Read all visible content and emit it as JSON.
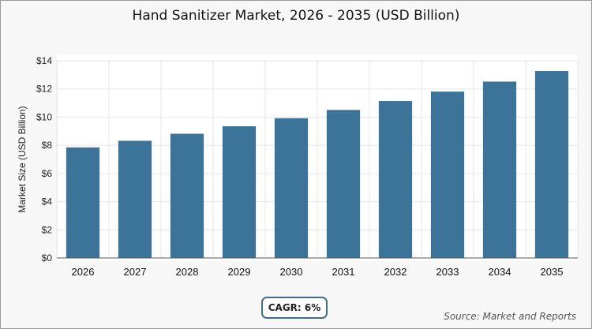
{
  "title": "Hand Sanitizer Market, 2026 - 2035 (USD Billion)",
  "cagr_label": "CAGR: 6%",
  "source": "Source: Market and Reports",
  "colors": {
    "bar": "#3b7399",
    "grid": "#e6e6e6",
    "axis": "#333333"
  },
  "chart_data": {
    "type": "bar",
    "title": "Hand Sanitizer Market, 2026 - 2035 (USD Billion)",
    "xlabel": "",
    "ylabel": "Market Size (USD Billion)",
    "categories": [
      "2026",
      "2027",
      "2028",
      "2029",
      "2030",
      "2031",
      "2032",
      "2033",
      "2034",
      "2035"
    ],
    "values": [
      7.85,
      8.32,
      8.82,
      9.35,
      9.92,
      10.51,
      11.14,
      11.81,
      12.52,
      13.27
    ],
    "ylim": [
      0,
      14
    ],
    "yticks": [
      0,
      2,
      4,
      6,
      8,
      10,
      12,
      14
    ],
    "ytick_labels": [
      "$0",
      "$2",
      "$4",
      "$6",
      "$8",
      "$10",
      "$12",
      "$14"
    ],
    "grid": true
  }
}
